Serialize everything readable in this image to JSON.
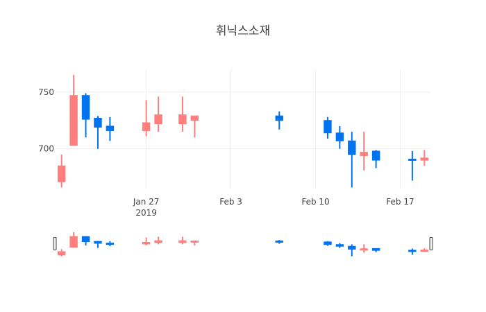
{
  "chart_data": {
    "type": "candlestick",
    "title": "휘닉스소재",
    "colors": {
      "increasing": "#ff7f7f",
      "decreasing": "#0074f0"
    },
    "x_ticks": [
      {
        "date": "2019-01-27",
        "label": "Jan 27",
        "sublabel": "2019"
      },
      {
        "date": "2019-02-03",
        "label": "Feb 3",
        "sublabel": ""
      },
      {
        "date": "2019-02-10",
        "label": "Feb 10",
        "sublabel": ""
      },
      {
        "date": "2019-02-17",
        "label": "Feb 17",
        "sublabel": ""
      }
    ],
    "y_ticks": [
      700,
      750
    ],
    "xlim": [
      "2019-01-20",
      "2019-02-19"
    ],
    "ylim": [
      665,
      770
    ],
    "range_slider": true,
    "candles": [
      {
        "date": "2019-01-20",
        "open": 671,
        "high": 695,
        "low": 666,
        "close": 685
      },
      {
        "date": "2019-01-21",
        "open": 703,
        "high": 765,
        "low": 703,
        "close": 747
      },
      {
        "date": "2019-01-22",
        "open": 747,
        "high": 749,
        "low": 710,
        "close": 726
      },
      {
        "date": "2019-01-23",
        "open": 727,
        "high": 729,
        "low": 700,
        "close": 719
      },
      {
        "date": "2019-01-24",
        "open": 720,
        "high": 728,
        "low": 707,
        "close": 716
      },
      {
        "date": "2019-01-27",
        "open": 716,
        "high": 743,
        "low": 711,
        "close": 723
      },
      {
        "date": "2019-01-28",
        "open": 722,
        "high": 746,
        "low": 715,
        "close": 730
      },
      {
        "date": "2019-01-30",
        "open": 722,
        "high": 746,
        "low": 715,
        "close": 730
      },
      {
        "date": "2019-01-31",
        "open": 725,
        "high": 729,
        "low": 710,
        "close": 729
      },
      {
        "date": "2019-02-07",
        "open": 729,
        "high": 733,
        "low": 717,
        "close": 725
      },
      {
        "date": "2019-02-11",
        "open": 725,
        "high": 728,
        "low": 709,
        "close": 714
      },
      {
        "date": "2019-02-12",
        "open": 714,
        "high": 720,
        "low": 700,
        "close": 707
      },
      {
        "date": "2019-02-13",
        "open": 707,
        "high": 715,
        "low": 666,
        "close": 695
      },
      {
        "date": "2019-02-14",
        "open": 694,
        "high": 715,
        "low": 681,
        "close": 697
      },
      {
        "date": "2019-02-15",
        "open": 698,
        "high": 699,
        "low": 683,
        "close": 690
      },
      {
        "date": "2019-02-18",
        "open": 691,
        "high": 698,
        "low": 672,
        "close": 690
      },
      {
        "date": "2019-02-19",
        "open": 690,
        "high": 699,
        "low": 685,
        "close": 692
      }
    ]
  }
}
